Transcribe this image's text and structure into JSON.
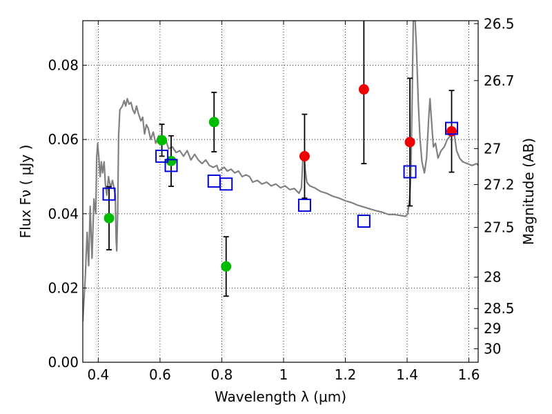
{
  "chart_data": {
    "type": "scatter",
    "xlabel": "Wavelength  λ (μm)",
    "ylabel": "Flux  Fν  ( μJy )",
    "y2label": "Magnitude (AB)",
    "xlim": [
      0.35,
      1.63
    ],
    "ylim": [
      0.0,
      0.092
    ],
    "grid": true,
    "x_ticks": [
      {
        "value": 0.4,
        "label": "0.4"
      },
      {
        "value": 0.6,
        "label": "0.6"
      },
      {
        "value": 0.8,
        "label": "0.8"
      },
      {
        "value": 1.0,
        "label": "1"
      },
      {
        "value": 1.2,
        "label": "1.2"
      },
      {
        "value": 1.4,
        "label": "1.4"
      },
      {
        "value": 1.6,
        "label": "1.6"
      }
    ],
    "y_ticks": [
      {
        "value": 0.0,
        "label": "0.00"
      },
      {
        "value": 0.02,
        "label": "0.02"
      },
      {
        "value": 0.04,
        "label": "0.04"
      },
      {
        "value": 0.06,
        "label": "0.06"
      },
      {
        "value": 0.08,
        "label": "0.08"
      }
    ],
    "mag_ticks": [
      {
        "value": 26.5,
        "label": "26.5"
      },
      {
        "value": 26.7,
        "label": "26.7"
      },
      {
        "value": 27.0,
        "label": "27"
      },
      {
        "value": 27.2,
        "label": "27.2"
      },
      {
        "value": 27.5,
        "label": "27.5"
      },
      {
        "value": 28.0,
        "label": "28"
      },
      {
        "value": 28.5,
        "label": "28.5"
      },
      {
        "value": 29.0,
        "label": "29"
      },
      {
        "value": 30.0,
        "label": "30"
      }
    ],
    "observed_optical": {
      "color": "#00bb00",
      "points": [
        {
          "x": 0.435,
          "y": 0.0388,
          "err": 0.0085
        },
        {
          "x": 0.606,
          "y": 0.0598,
          "err": 0.0043
        },
        {
          "x": 0.636,
          "y": 0.0542,
          "err": 0.0068
        },
        {
          "x": 0.775,
          "y": 0.0647,
          "err": 0.008
        },
        {
          "x": 0.814,
          "y": 0.0258,
          "err": 0.008
        }
      ]
    },
    "observed_nir": {
      "color": "#ee0000",
      "points": [
        {
          "x": 1.068,
          "y": 0.0555,
          "err": 0.0113
        },
        {
          "x": 1.26,
          "y": 0.0735,
          "err": 0.02
        },
        {
          "x": 1.409,
          "y": 0.0593,
          "err": 0.0172
        },
        {
          "x": 1.544,
          "y": 0.0622,
          "err": 0.011
        }
      ]
    },
    "model_photometry": {
      "color": "#0000dd",
      "points": [
        {
          "x": 0.435,
          "y": 0.0453
        },
        {
          "x": 0.606,
          "y": 0.0555
        },
        {
          "x": 0.636,
          "y": 0.053
        },
        {
          "x": 0.775,
          "y": 0.0488
        },
        {
          "x": 0.814,
          "y": 0.048
        },
        {
          "x": 1.068,
          "y": 0.0423
        },
        {
          "x": 1.26,
          "y": 0.038
        },
        {
          "x": 1.409,
          "y": 0.0513
        },
        {
          "x": 1.544,
          "y": 0.063
        }
      ]
    },
    "model_spectrum": {
      "color": "#808080",
      "points": [
        [
          0.35,
          0.011
        ],
        [
          0.358,
          0.023
        ],
        [
          0.364,
          0.035
        ],
        [
          0.369,
          0.026
        ],
        [
          0.374,
          0.042
        ],
        [
          0.38,
          0.028
        ],
        [
          0.386,
          0.044
        ],
        [
          0.392,
          0.04
        ],
        [
          0.395,
          0.055
        ],
        [
          0.398,
          0.059
        ],
        [
          0.402,
          0.055
        ],
        [
          0.406,
          0.05
        ],
        [
          0.41,
          0.054
        ],
        [
          0.414,
          0.051
        ],
        [
          0.419,
          0.054
        ],
        [
          0.423,
          0.048
        ],
        [
          0.428,
          0.045
        ],
        [
          0.433,
          0.05
        ],
        [
          0.44,
          0.047
        ],
        [
          0.446,
          0.049
        ],
        [
          0.451,
          0.047
        ],
        [
          0.455,
          0.045
        ],
        [
          0.458,
          0.033
        ],
        [
          0.46,
          0.03
        ],
        [
          0.463,
          0.041
        ],
        [
          0.466,
          0.061
        ],
        [
          0.47,
          0.068
        ],
        [
          0.478,
          0.069
        ],
        [
          0.484,
          0.0705
        ],
        [
          0.489,
          0.069
        ],
        [
          0.494,
          0.071
        ],
        [
          0.5,
          0.0695
        ],
        [
          0.506,
          0.07
        ],
        [
          0.512,
          0.068
        ],
        [
          0.518,
          0.067
        ],
        [
          0.524,
          0.069
        ],
        [
          0.53,
          0.067
        ],
        [
          0.538,
          0.065
        ],
        [
          0.544,
          0.066
        ],
        [
          0.55,
          0.0615
        ],
        [
          0.556,
          0.064
        ],
        [
          0.562,
          0.063
        ],
        [
          0.57,
          0.06
        ],
        [
          0.578,
          0.062
        ],
        [
          0.586,
          0.059
        ],
        [
          0.596,
          0.061
        ],
        [
          0.606,
          0.059
        ],
        [
          0.618,
          0.06
        ],
        [
          0.628,
          0.0575
        ],
        [
          0.64,
          0.058
        ],
        [
          0.652,
          0.0565
        ],
        [
          0.664,
          0.057
        ],
        [
          0.676,
          0.0555
        ],
        [
          0.688,
          0.057
        ],
        [
          0.7,
          0.0545
        ],
        [
          0.712,
          0.056
        ],
        [
          0.724,
          0.0545
        ],
        [
          0.736,
          0.0535
        ],
        [
          0.748,
          0.0545
        ],
        [
          0.76,
          0.053
        ],
        [
          0.772,
          0.0525
        ],
        [
          0.784,
          0.053
        ],
        [
          0.79,
          0.0515
        ],
        [
          0.798,
          0.052
        ],
        [
          0.808,
          0.0525
        ],
        [
          0.818,
          0.0515
        ],
        [
          0.83,
          0.052
        ],
        [
          0.842,
          0.051
        ],
        [
          0.854,
          0.0515
        ],
        [
          0.866,
          0.05
        ],
        [
          0.878,
          0.0505
        ],
        [
          0.89,
          0.05
        ],
        [
          0.9,
          0.0485
        ],
        [
          0.915,
          0.049
        ],
        [
          0.93,
          0.048
        ],
        [
          0.945,
          0.0485
        ],
        [
          0.96,
          0.0475
        ],
        [
          0.975,
          0.048
        ],
        [
          0.99,
          0.047
        ],
        [
          1.005,
          0.0475
        ],
        [
          1.02,
          0.0465
        ],
        [
          1.035,
          0.0468
        ],
        [
          1.05,
          0.0455
        ],
        [
          1.058,
          0.047
        ],
        [
          1.062,
          0.054
        ],
        [
          1.066,
          0.0565
        ],
        [
          1.07,
          0.052
        ],
        [
          1.075,
          0.0485
        ],
        [
          1.085,
          0.0475
        ],
        [
          1.1,
          0.047
        ],
        [
          1.12,
          0.046
        ],
        [
          1.14,
          0.0455
        ],
        [
          1.16,
          0.0447
        ],
        [
          1.18,
          0.0442
        ],
        [
          1.2,
          0.0435
        ],
        [
          1.22,
          0.043
        ],
        [
          1.24,
          0.0423
        ],
        [
          1.26,
          0.0418
        ],
        [
          1.28,
          0.0413
        ],
        [
          1.3,
          0.0408
        ],
        [
          1.32,
          0.0404
        ],
        [
          1.34,
          0.0398
        ],
        [
          1.36,
          0.0398
        ],
        [
          1.38,
          0.0395
        ],
        [
          1.395,
          0.0393
        ],
        [
          1.402,
          0.04
        ],
        [
          1.408,
          0.044
        ],
        [
          1.412,
          0.05
        ],
        [
          1.416,
          0.07
        ],
        [
          1.42,
          0.092
        ],
        [
          1.426,
          0.092
        ],
        [
          1.43,
          0.085
        ],
        [
          1.436,
          0.07
        ],
        [
          1.442,
          0.06
        ],
        [
          1.448,
          0.054
        ],
        [
          1.456,
          0.051
        ],
        [
          1.463,
          0.055
        ],
        [
          1.47,
          0.066
        ],
        [
          1.474,
          0.071
        ],
        [
          1.478,
          0.066
        ],
        [
          1.485,
          0.058
        ],
        [
          1.492,
          0.059
        ],
        [
          1.5,
          0.055
        ],
        [
          1.51,
          0.057
        ],
        [
          1.52,
          0.058
        ],
        [
          1.53,
          0.06
        ],
        [
          1.54,
          0.061
        ],
        [
          1.55,
          0.063
        ],
        [
          1.56,
          0.057
        ],
        [
          1.57,
          0.055
        ],
        [
          1.58,
          0.054
        ],
        [
          1.595,
          0.0535
        ],
        [
          1.61,
          0.053
        ],
        [
          1.625,
          0.0535
        ],
        [
          1.63,
          0.053
        ]
      ]
    }
  }
}
